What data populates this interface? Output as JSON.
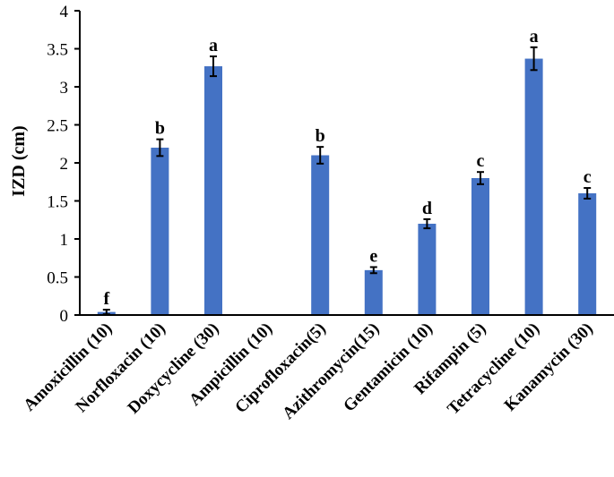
{
  "chart_data": {
    "type": "bar",
    "ylabel": "IZD (cm)",
    "ylim": [
      0,
      4
    ],
    "yticks": [
      "0",
      "0.5",
      "1",
      "1.5",
      "2",
      "2.5",
      "3",
      "3.5",
      "4"
    ],
    "grid": false,
    "bar_color": "#4472c4",
    "categories": [
      "Amoxicillin (10)",
      "Norfloxacin (10)",
      "Doxycycline (30)",
      "Ampicillin (10)",
      "Ciprofloxacin(5)",
      "Azithromycin(15)",
      "Gentamicin (10)",
      "Rifampin (5)",
      "Tetracycline (10)",
      "Kanamycin (30)"
    ],
    "values": [
      0.04,
      2.2,
      3.27,
      0,
      2.1,
      0.59,
      1.2,
      1.8,
      3.37,
      1.6
    ],
    "errors": [
      0.03,
      0.11,
      0.13,
      0,
      0.11,
      0.04,
      0.06,
      0.08,
      0.15,
      0.07
    ],
    "significance": [
      "f",
      "b",
      "a",
      "",
      "b",
      "e",
      "d",
      "c",
      "a",
      "c"
    ]
  }
}
